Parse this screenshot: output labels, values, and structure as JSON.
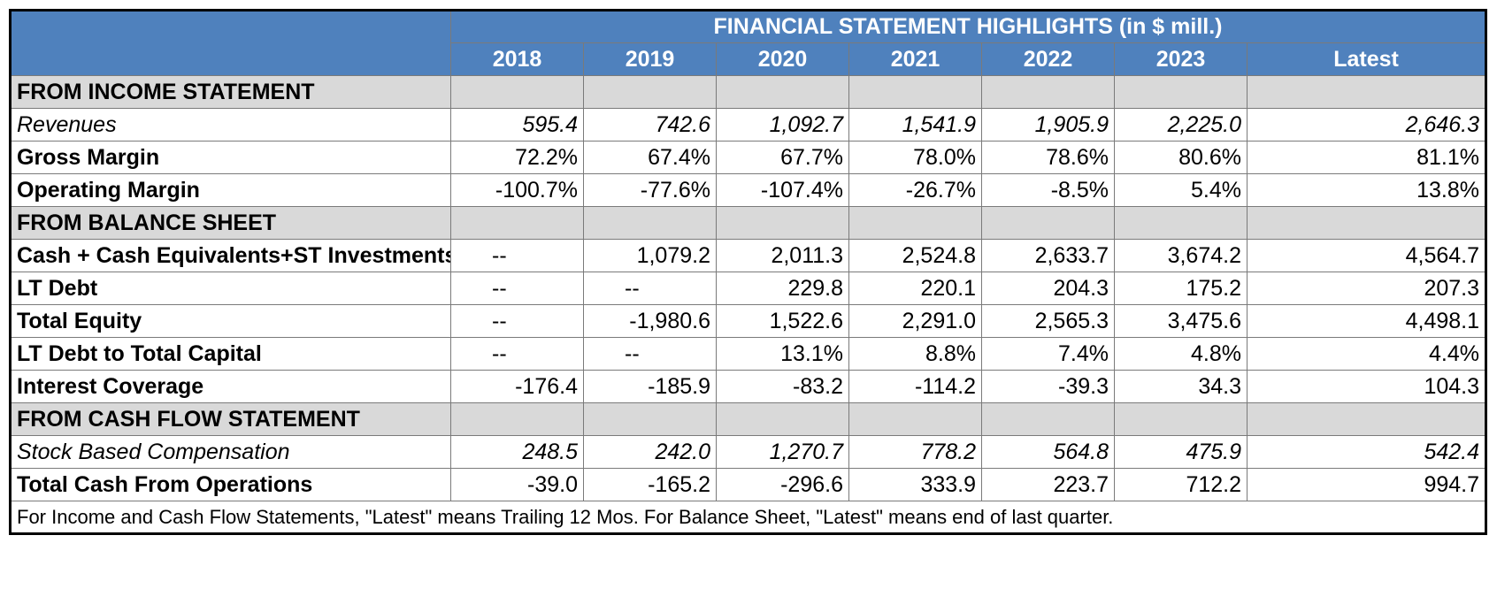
{
  "title": "FINANCIAL STATEMENT HIGHLIGHTS (in $ mill.)",
  "columns": [
    "2018",
    "2019",
    "2020",
    "2021",
    "2022",
    "2023",
    "Latest"
  ],
  "sections": {
    "income": {
      "heading": "FROM INCOME STATEMENT",
      "rows": [
        {
          "label": "Revenues",
          "style": "italic",
          "values": [
            "595.4",
            "742.6",
            "1,092.7",
            "1,541.9",
            "1,905.9",
            "2,225.0",
            "2,646.3"
          ]
        },
        {
          "label": "Gross Margin",
          "style": "bold",
          "values": [
            "72.2%",
            "67.4%",
            "67.7%",
            "78.0%",
            "78.6%",
            "80.6%",
            "81.1%"
          ]
        },
        {
          "label": "Operating Margin",
          "style": "bold",
          "values": [
            "-100.7%",
            "-77.6%",
            "-107.4%",
            "-26.7%",
            "-8.5%",
            "5.4%",
            "13.8%"
          ]
        }
      ]
    },
    "balance": {
      "heading": "FROM BALANCE SHEET",
      "rows": [
        {
          "label": "Cash + Cash Equivalents+ST Investments",
          "style": "bold",
          "values": [
            "--",
            "1,079.2",
            "2,011.3",
            "2,524.8",
            "2,633.7",
            "3,674.2",
            "4,564.7"
          ]
        },
        {
          "label": "LT Debt",
          "style": "bold",
          "values": [
            "--",
            "--",
            "229.8",
            "220.1",
            "204.3",
            "175.2",
            "207.3"
          ]
        },
        {
          "label": "Total Equity",
          "style": "bold",
          "values": [
            "--",
            "-1,980.6",
            "1,522.6",
            "2,291.0",
            "2,565.3",
            "3,475.6",
            "4,498.1"
          ]
        },
        {
          "label": "LT Debt to Total Capital",
          "style": "bold",
          "values": [
            "--",
            "--",
            "13.1%",
            "8.8%",
            "7.4%",
            "4.8%",
            "4.4%"
          ]
        },
        {
          "label": "Interest Coverage",
          "style": "bold",
          "values": [
            "-176.4",
            "-185.9",
            "-83.2",
            "-114.2",
            "-39.3",
            "34.3",
            "104.3"
          ]
        }
      ]
    },
    "cashflow": {
      "heading": "FROM CASH FLOW STATEMENT",
      "rows": [
        {
          "label": "Stock Based Compensation",
          "style": "italic",
          "values": [
            "248.5",
            "242.0",
            "1,270.7",
            "778.2",
            "564.8",
            "475.9",
            "542.4"
          ]
        },
        {
          "label": "Total Cash From Operations",
          "style": "bold",
          "values": [
            "-39.0",
            "-165.2",
            "-296.6",
            "333.9",
            "223.7",
            "712.2",
            "994.7"
          ]
        }
      ]
    }
  },
  "footnote": "For Income and Cash Flow Statements, \"Latest\" means Trailing 12 Mos. For Balance Sheet, \"Latest\" means end of last quarter.",
  "colors": {
    "header_blue": "#4f81bd",
    "section_gray": "#d9d9d9"
  }
}
